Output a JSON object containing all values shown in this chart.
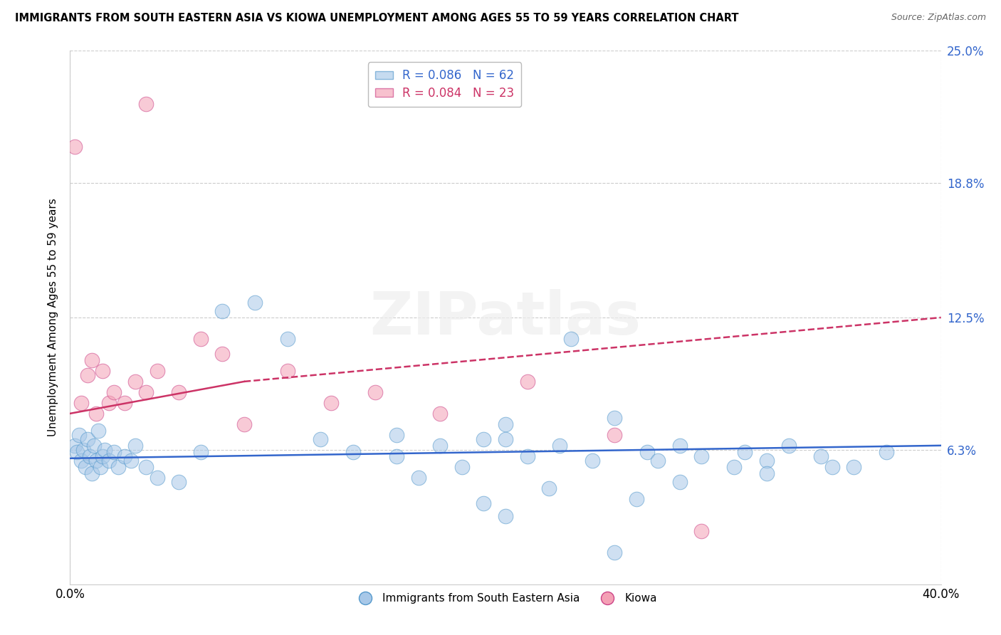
{
  "title": "IMMIGRANTS FROM SOUTH EASTERN ASIA VS KIOWA UNEMPLOYMENT AMONG AGES 55 TO 59 YEARS CORRELATION CHART",
  "source": "Source: ZipAtlas.com",
  "ylabel": "Unemployment Among Ages 55 to 59 years",
  "xlim": [
    0.0,
    40.0
  ],
  "ylim": [
    0.0,
    25.0
  ],
  "ytick_vals": [
    0.0,
    6.3,
    12.5,
    18.8,
    25.0
  ],
  "ytick_labels": [
    "",
    "6.3%",
    "12.5%",
    "18.8%",
    "25.0%"
  ],
  "xtick_vals": [
    0.0,
    40.0
  ],
  "xtick_labels": [
    "0.0%",
    "40.0%"
  ],
  "legend_blue_label": "R = 0.086   N = 62",
  "legend_pink_label": "R = 0.084   N = 23",
  "legend_label_blue": "Immigrants from South Eastern Asia",
  "legend_label_pink": "Kiowa",
  "blue_color": "#a8c8e8",
  "pink_color": "#f4a0b5",
  "blue_line_color": "#3366cc",
  "pink_line_color": "#cc3366",
  "watermark": "ZIPatlas",
  "blue_scatter_x": [
    0.2,
    0.3,
    0.4,
    0.5,
    0.6,
    0.7,
    0.8,
    0.9,
    1.0,
    1.1,
    1.2,
    1.3,
    1.4,
    1.5,
    1.6,
    1.8,
    2.0,
    2.2,
    2.5,
    2.8,
    3.0,
    3.5,
    4.0,
    5.0,
    6.0,
    7.0,
    8.5,
    10.0,
    11.5,
    13.0,
    15.0,
    17.0,
    19.0,
    20.0,
    21.0,
    22.5,
    24.0,
    25.0,
    26.5,
    28.0,
    29.0,
    30.5,
    32.0,
    33.0,
    34.5,
    36.0,
    37.5,
    15.0,
    18.0,
    20.0,
    23.0,
    27.0,
    31.0,
    35.0,
    20.0,
    22.0,
    25.0,
    28.0,
    32.0,
    26.0,
    19.0,
    16.0
  ],
  "blue_scatter_y": [
    6.5,
    6.2,
    7.0,
    5.8,
    6.3,
    5.5,
    6.8,
    6.0,
    5.2,
    6.5,
    5.8,
    7.2,
    5.5,
    6.0,
    6.3,
    5.8,
    6.2,
    5.5,
    6.0,
    5.8,
    6.5,
    5.5,
    5.0,
    4.8,
    6.2,
    12.8,
    13.2,
    11.5,
    6.8,
    6.2,
    7.0,
    6.5,
    6.8,
    7.5,
    6.0,
    6.5,
    5.8,
    7.8,
    6.2,
    6.5,
    6.0,
    5.5,
    5.8,
    6.5,
    6.0,
    5.5,
    6.2,
    6.0,
    5.5,
    6.8,
    11.5,
    5.8,
    6.2,
    5.5,
    3.2,
    4.5,
    1.5,
    4.8,
    5.2,
    4.0,
    3.8,
    5.0
  ],
  "pink_scatter_x": [
    0.2,
    0.5,
    0.8,
    1.0,
    1.2,
    1.5,
    1.8,
    2.0,
    2.5,
    3.0,
    3.5,
    4.0,
    5.0,
    6.0,
    7.0,
    8.0,
    10.0,
    12.0,
    14.0,
    17.0,
    21.0,
    25.0,
    29.0
  ],
  "pink_scatter_y": [
    20.5,
    8.5,
    9.8,
    10.5,
    8.0,
    10.0,
    8.5,
    9.0,
    8.5,
    9.5,
    9.0,
    10.0,
    9.0,
    11.5,
    10.8,
    7.5,
    10.0,
    8.5,
    9.0,
    8.0,
    9.5,
    7.0,
    2.5
  ],
  "pink_high_x": 3.5,
  "pink_high_y": 22.5,
  "blue_trend": [
    0.0,
    40.0,
    5.9,
    6.5
  ],
  "pink_trend_solid": [
    0.0,
    8.0,
    8.0,
    9.5
  ],
  "pink_trend_dashed": [
    8.0,
    40.0,
    9.5,
    12.5
  ]
}
